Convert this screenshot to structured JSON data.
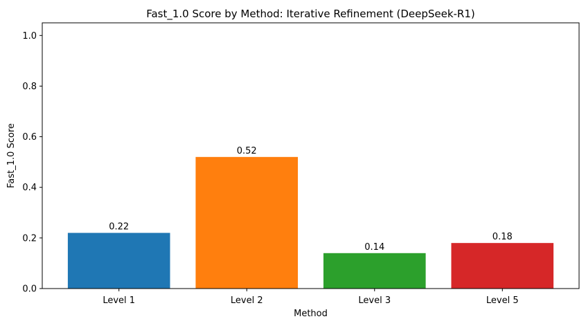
{
  "chart_data": {
    "type": "bar",
    "title": "Fast_1.0 Score by Method: Iterative Refinement (DeepSeek-R1)",
    "xlabel": "Method",
    "ylabel": "Fast_1.0 Score",
    "categories": [
      "Level 1",
      "Level 2",
      "Level 3",
      "Level 5"
    ],
    "values": [
      0.22,
      0.52,
      0.14,
      0.18
    ],
    "value_labels": [
      "0.22",
      "0.52",
      "0.14",
      "0.18"
    ],
    "colors": [
      "#1f77b4",
      "#ff7f0e",
      "#2ca02c",
      "#d62728"
    ],
    "ylim": [
      0,
      1.05
    ],
    "yticks": [
      0.0,
      0.2,
      0.4,
      0.6,
      0.8,
      1.0
    ],
    "ytick_labels": [
      "0.0",
      "0.2",
      "0.4",
      "0.6",
      "0.8",
      "1.0"
    ],
    "grid": false,
    "legend": "none"
  }
}
